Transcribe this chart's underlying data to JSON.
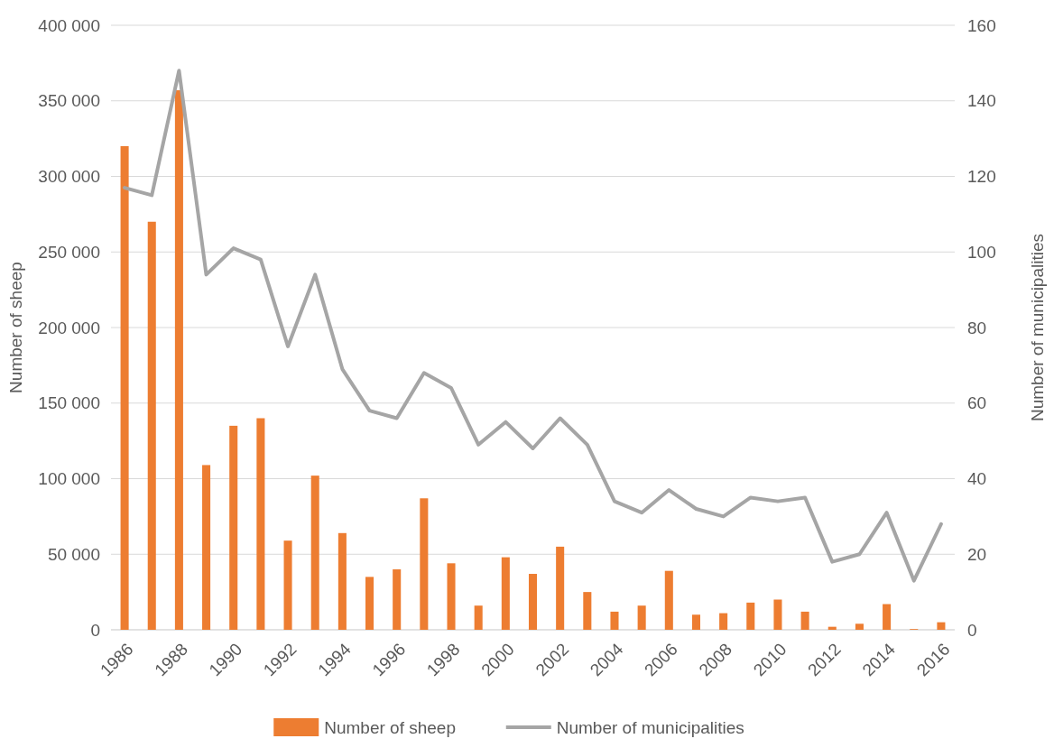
{
  "chart_data": {
    "type": "bar",
    "ylabel": "Number of sheep",
    "y2label": "Number of municipalities",
    "categories": [
      "1986",
      null,
      "1988",
      null,
      "1990",
      null,
      "1992",
      null,
      "1994",
      null,
      "1996",
      null,
      "1998",
      null,
      "2000",
      null,
      "2002",
      null,
      "2004",
      null,
      "2006",
      null,
      "2008",
      null,
      "2010",
      null,
      "2012",
      null,
      "2014",
      null,
      "2016"
    ],
    "series": [
      {
        "name": "Number of sheep",
        "color": "#ed7d31",
        "values": [
          320000,
          270000,
          357000,
          109000,
          135000,
          140000,
          59000,
          102000,
          64000,
          35000,
          40000,
          87000,
          44000,
          16000,
          48000,
          37000,
          55000,
          25000,
          12000,
          16000,
          39000,
          10000,
          11000,
          18000,
          20000,
          12000,
          2000,
          4000,
          17000,
          500,
          5000
        ]
      },
      {
        "name": "Number of municipalities",
        "type": "line",
        "axis": "y2",
        "color": "#a5a5a5",
        "values": [
          117,
          115,
          148,
          94,
          101,
          98,
          75,
          94,
          69,
          58,
          56,
          68,
          64,
          49,
          55,
          48,
          56,
          49,
          34,
          31,
          37,
          32,
          30,
          35,
          34,
          35,
          18,
          20,
          31,
          13,
          28
        ]
      }
    ],
    "ylim": [
      0,
      400000
    ],
    "yticks": [
      0,
      {
        "value": 50000,
        "label": "50 000"
      },
      {
        "value": 100000,
        "label": "100 000"
      },
      {
        "value": 150000,
        "label": "150 000"
      },
      {
        "value": 200000,
        "label": "200 000"
      },
      {
        "value": 250000,
        "label": "250 000"
      },
      {
        "value": 300000,
        "label": "300 000"
      },
      {
        "value": 350000,
        "label": "350 000"
      },
      {
        "value": 400000,
        "label": "400 000"
      }
    ],
    "y2lim": [
      0,
      160
    ],
    "y2ticks": [
      0,
      20,
      40,
      60,
      80,
      100,
      120,
      140,
      160
    ],
    "grid": "y",
    "legend": "bottom",
    "marker": "none",
    "line_style": "solid"
  }
}
